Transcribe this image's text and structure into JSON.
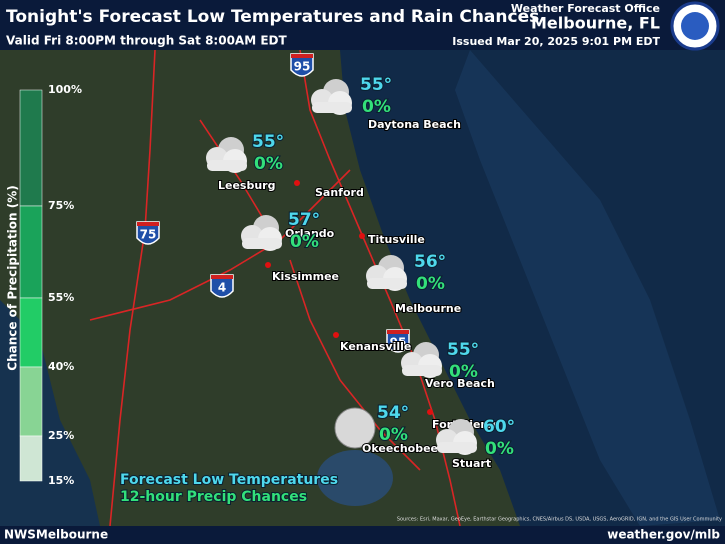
{
  "header": {
    "title": "Tonight's Forecast Low Temperatures and Rain Chances",
    "subtitle": "Valid Fri 8:00PM through Sat 8:00AM EDT",
    "office": "Weather Forecast Office",
    "location": "Melbourne, FL",
    "issued": "Issued Mar 20, 2025 9:01 PM EDT"
  },
  "legend": {
    "title": "Chance of Precipitation (%)",
    "ticks": [
      "100%",
      "75%",
      "55%",
      "40%",
      "25%",
      "15%"
    ]
  },
  "forecasts": [
    {
      "city": "Daytona Beach",
      "temp": "55°",
      "rain": "0%"
    },
    {
      "city": "Leesburg",
      "temp": "55°",
      "rain": "0%"
    },
    {
      "city": "Orlando",
      "temp": "57°",
      "rain": "0%"
    },
    {
      "city": "Melbourne",
      "temp": "56°",
      "rain": "0%"
    },
    {
      "city": "Vero Beach",
      "temp": "55°",
      "rain": "0%"
    },
    {
      "city": "Okeechobee",
      "temp": "54°",
      "rain": "0%"
    },
    {
      "city": "Stuart",
      "temp": "60°",
      "rain": "0%"
    }
  ],
  "towns": [
    "Sanford",
    "Titusville",
    "Kissimmee",
    "Kenansville",
    "Fort Pierce"
  ],
  "shields": [
    "95",
    "75",
    "4",
    "95"
  ],
  "caption": {
    "line1": "Forecast Low Temperatures",
    "line2": "12-hour Precip Chances"
  },
  "attribution": "Sources: Esri, Maxar, GeoEye, Earthstar Geographics, CNES/Airbus DS, USDA, USGS, AeroGRID, IGN, and the GIS User Community",
  "footer": {
    "left": "NWSMelbourne",
    "right": "weather.gov/mlb"
  }
}
